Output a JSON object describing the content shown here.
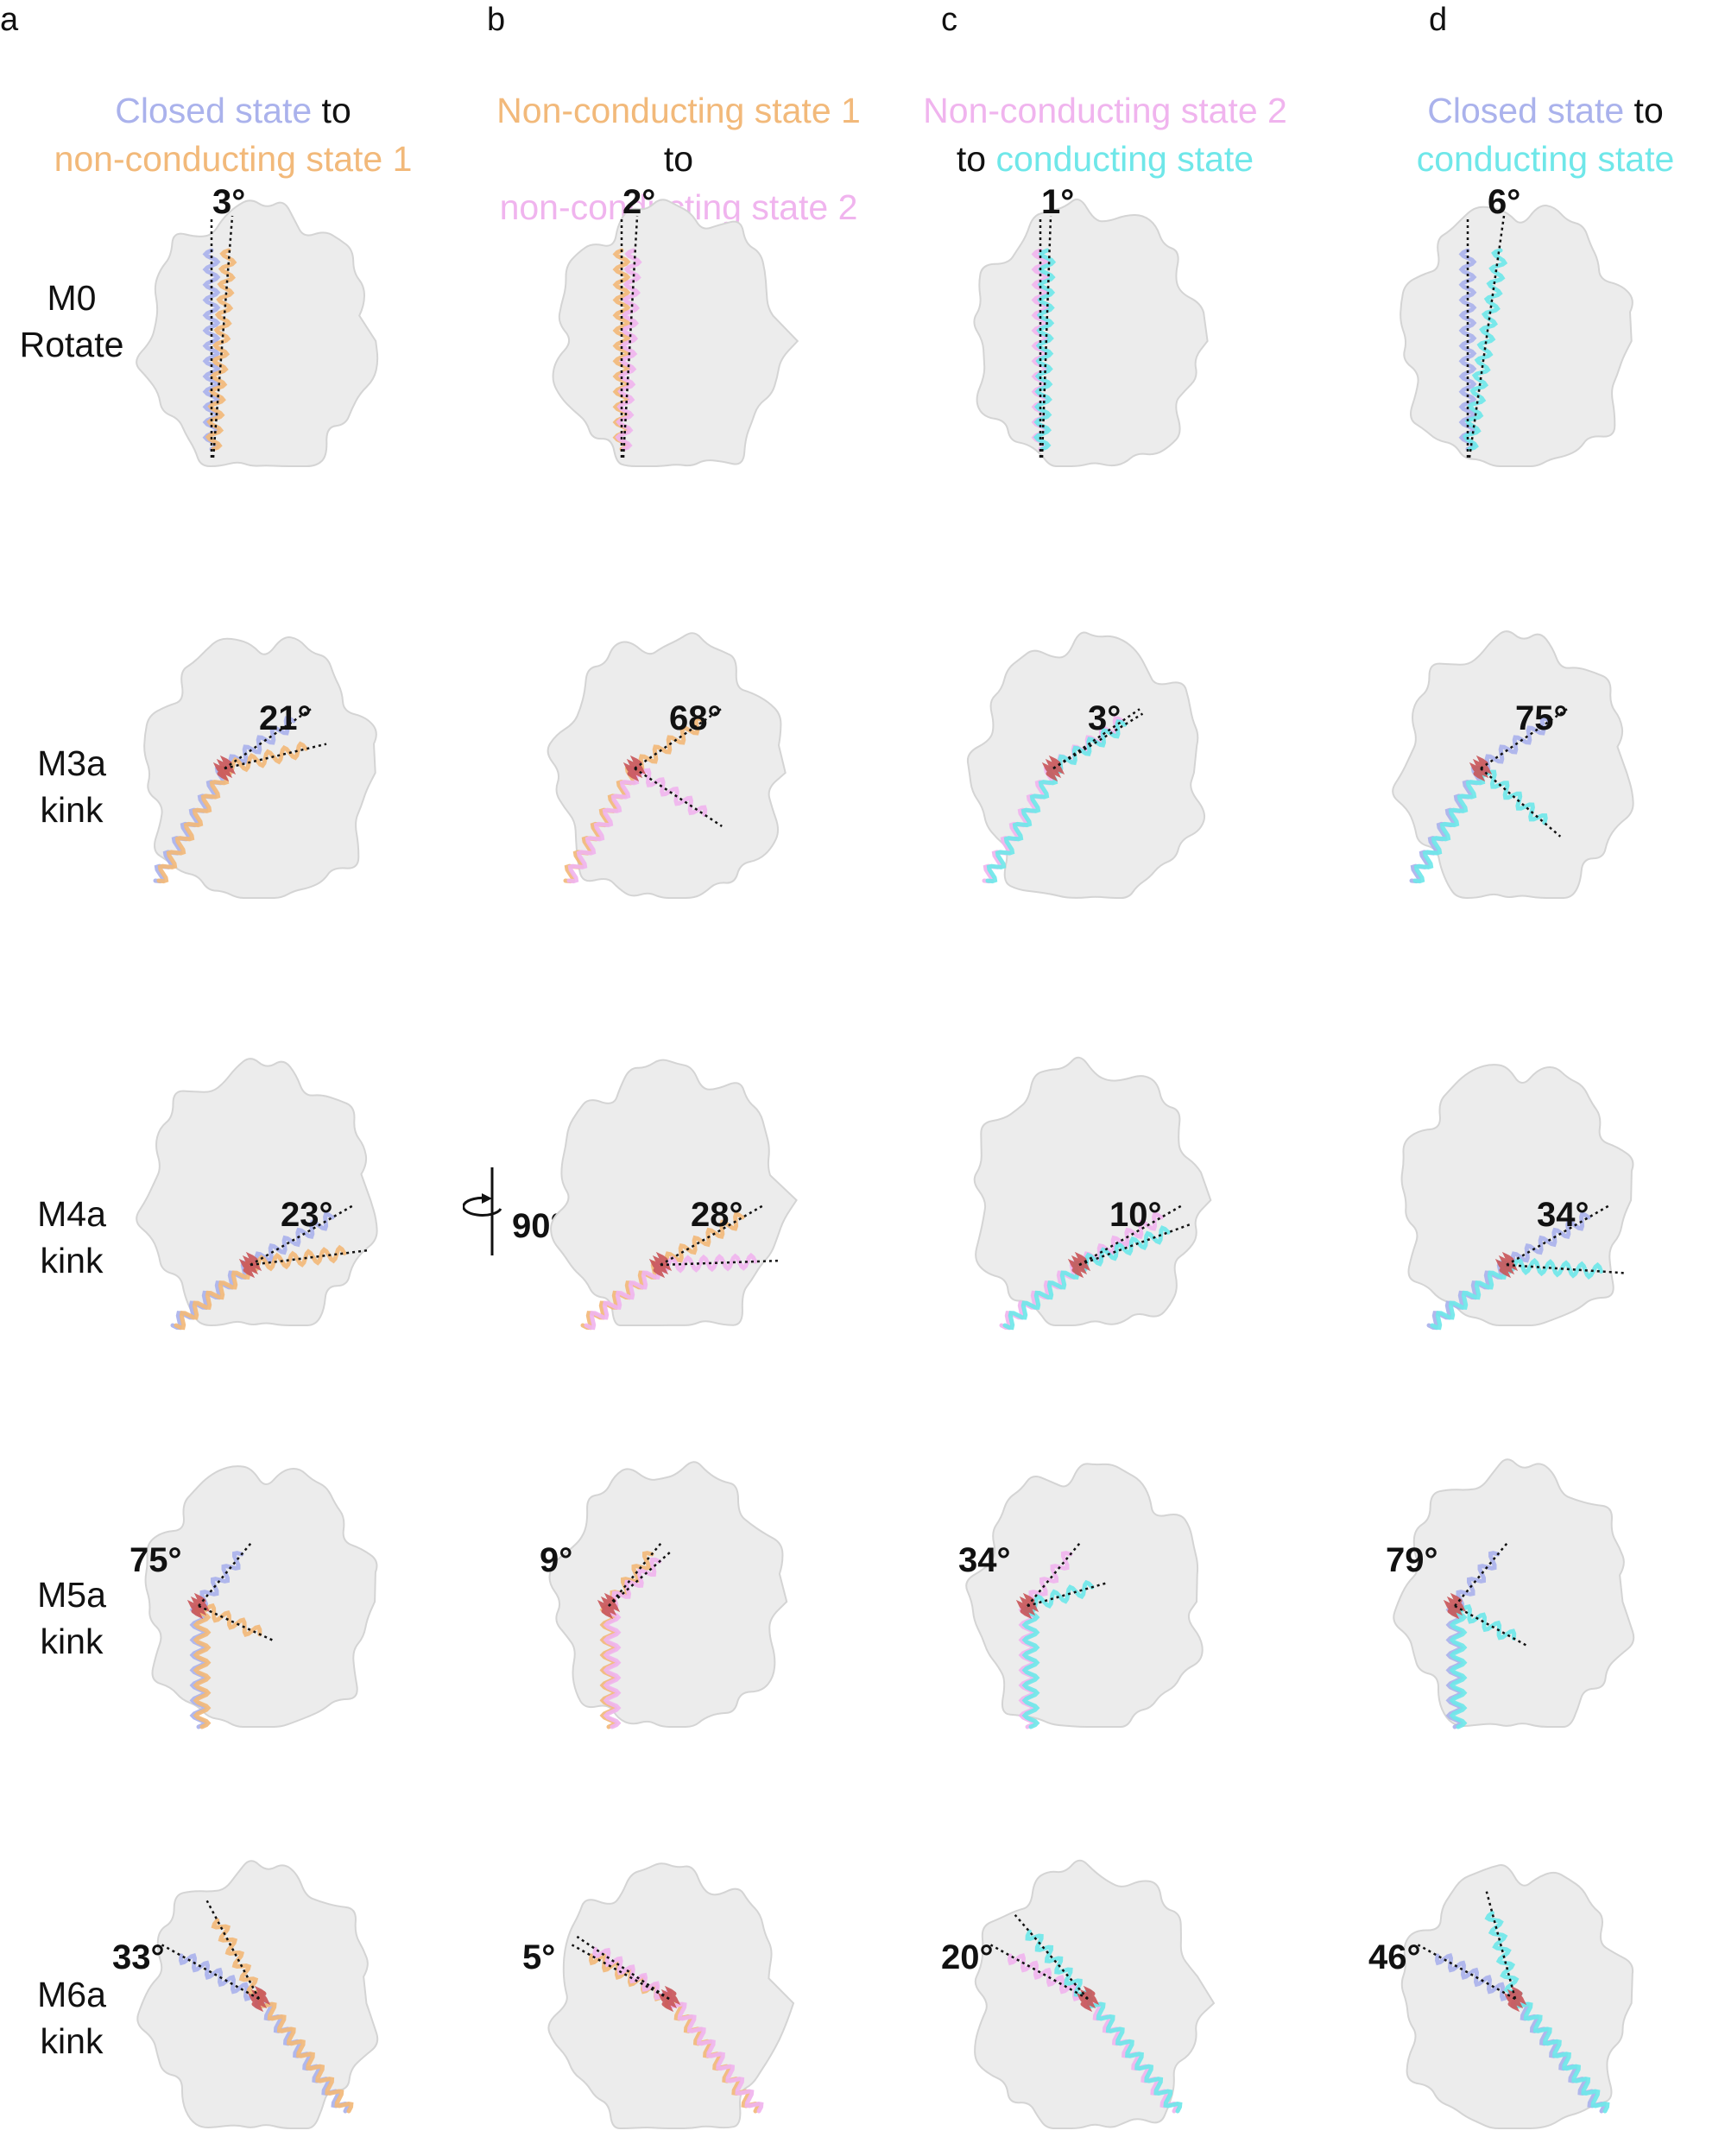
{
  "colors": {
    "closed": "#aab2ec",
    "nc1": "#f2b97a",
    "nc2": "#f0b4ee",
    "conducting": "#6fe7e9",
    "kink": "#c9575a",
    "surface": "#ececec",
    "surface_edge": "#d4d4d4"
  },
  "panels": [
    "a",
    "b",
    "c",
    "d"
  ],
  "columns": [
    {
      "l1": [
        {
          "t": "Closed state",
          "c": "closed"
        },
        {
          "t": " to",
          "c": "black"
        }
      ],
      "l2": [
        {
          "t": "non-conducting state 1",
          "c": "nc1"
        }
      ]
    },
    {
      "l1": [
        {
          "t": "Non-conducting state 1",
          "c": "nc1"
        },
        {
          "t": " to",
          "c": "black"
        }
      ],
      "l2": [
        {
          "t": "non-conducting state 2",
          "c": "nc2"
        }
      ]
    },
    {
      "l1": [
        {
          "t": "Non-conducting state 2",
          "c": "nc2"
        }
      ],
      "l2": [
        {
          "t": "to ",
          "c": "black"
        },
        {
          "t": "conducting state",
          "c": "conducting"
        }
      ]
    },
    {
      "l1": [
        {
          "t": "Closed state",
          "c": "closed"
        },
        {
          "t": " to",
          "c": "black"
        }
      ],
      "l2": [
        {
          "t": "conducting ",
          "c": "conducting"
        },
        {
          "t": "state",
          "c": "conducting"
        }
      ]
    }
  ],
  "rows": [
    {
      "line1": "M0",
      "line2": "Rotate",
      "angles": [
        "3°",
        "2°",
        "1°",
        "6°"
      ]
    },
    {
      "line1": "M3a",
      "line2": "kink",
      "angles": [
        "21°",
        "68°",
        "3°",
        "75°"
      ]
    },
    {
      "line1": "M4a",
      "line2": "kink",
      "angles": [
        "23°",
        "28°",
        "10°",
        "34°"
      ]
    },
    {
      "line1": "M5a",
      "line2": "kink",
      "angles": [
        "75°",
        "9°",
        "34°",
        "79°"
      ]
    },
    {
      "line1": "M6a",
      "line2": "kink",
      "angles": [
        "33°",
        "5°",
        "20°",
        "46°"
      ]
    }
  ],
  "rotation_label": "90°",
  "pairs": [
    [
      "closed",
      "nc1"
    ],
    [
      "nc1",
      "nc2"
    ],
    [
      "nc2",
      "conducting"
    ],
    [
      "closed",
      "conducting"
    ]
  ]
}
